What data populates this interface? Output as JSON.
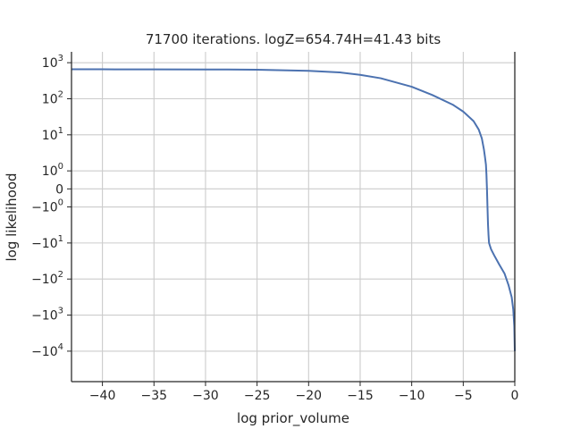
{
  "chart_data": {
    "type": "line",
    "title": "71700 iterations. logZ=654.74H=41.43 bits",
    "xlabel": "log prior_volume",
    "ylabel": "log likelihood",
    "xlim": [
      -43,
      0
    ],
    "yscale": "symlog",
    "ylim": [
      -70000,
      2000
    ],
    "grid": true,
    "x_ticks": [
      {
        "value": -40,
        "label": "−40"
      },
      {
        "value": -35,
        "label": "−35"
      },
      {
        "value": -30,
        "label": "−30"
      },
      {
        "value": -25,
        "label": "−25"
      },
      {
        "value": -20,
        "label": "−20"
      },
      {
        "value": -15,
        "label": "−15"
      },
      {
        "value": -10,
        "label": "−10"
      },
      {
        "value": -5,
        "label": "−5"
      },
      {
        "value": 0,
        "label": "0"
      }
    ],
    "y_ticks": [
      {
        "value": 1000,
        "base": "10",
        "exp": "3"
      },
      {
        "value": 100,
        "base": "10",
        "exp": "2"
      },
      {
        "value": 10,
        "base": "10",
        "exp": "1"
      },
      {
        "value": 1,
        "base": "10",
        "exp": "0"
      },
      {
        "value": 0,
        "base": "0",
        "exp": ""
      },
      {
        "value": -1,
        "base": "−10",
        "exp": "0"
      },
      {
        "value": -10,
        "base": "−10",
        "exp": "1"
      },
      {
        "value": -100,
        "base": "−10",
        "exp": "2"
      },
      {
        "value": -1000,
        "base": "−10",
        "exp": "3"
      },
      {
        "value": -10000,
        "base": "−10",
        "exp": "4"
      }
    ],
    "series": [
      {
        "color": "#4c72b0",
        "points": [
          [
            -43,
            655
          ],
          [
            -40,
            655
          ],
          [
            -35,
            654
          ],
          [
            -30,
            650
          ],
          [
            -25,
            640
          ],
          [
            -20,
            595
          ],
          [
            -17,
            540
          ],
          [
            -15,
            460
          ],
          [
            -13,
            370
          ],
          [
            -10,
            215
          ],
          [
            -8,
            127
          ],
          [
            -6,
            68
          ],
          [
            -5,
            44
          ],
          [
            -4,
            24
          ],
          [
            -3.5,
            14
          ],
          [
            -3.2,
            8
          ],
          [
            -3.0,
            4
          ],
          [
            -2.9,
            2.5
          ],
          [
            -2.8,
            1.5
          ],
          [
            -2.75,
            0.8
          ],
          [
            -2.72,
            0.3
          ],
          [
            -2.7,
            0
          ],
          [
            -2.68,
            -0.4
          ],
          [
            -2.65,
            -1
          ],
          [
            -2.6,
            -3
          ],
          [
            -2.55,
            -6
          ],
          [
            -2.5,
            -10
          ],
          [
            -2.3,
            -15
          ],
          [
            -2.0,
            -22
          ],
          [
            -1.5,
            -40
          ],
          [
            -1.0,
            -70
          ],
          [
            -0.6,
            -150
          ],
          [
            -0.3,
            -320
          ],
          [
            -0.15,
            -700
          ],
          [
            -0.05,
            -2000
          ],
          [
            0,
            -10000
          ]
        ]
      }
    ]
  }
}
